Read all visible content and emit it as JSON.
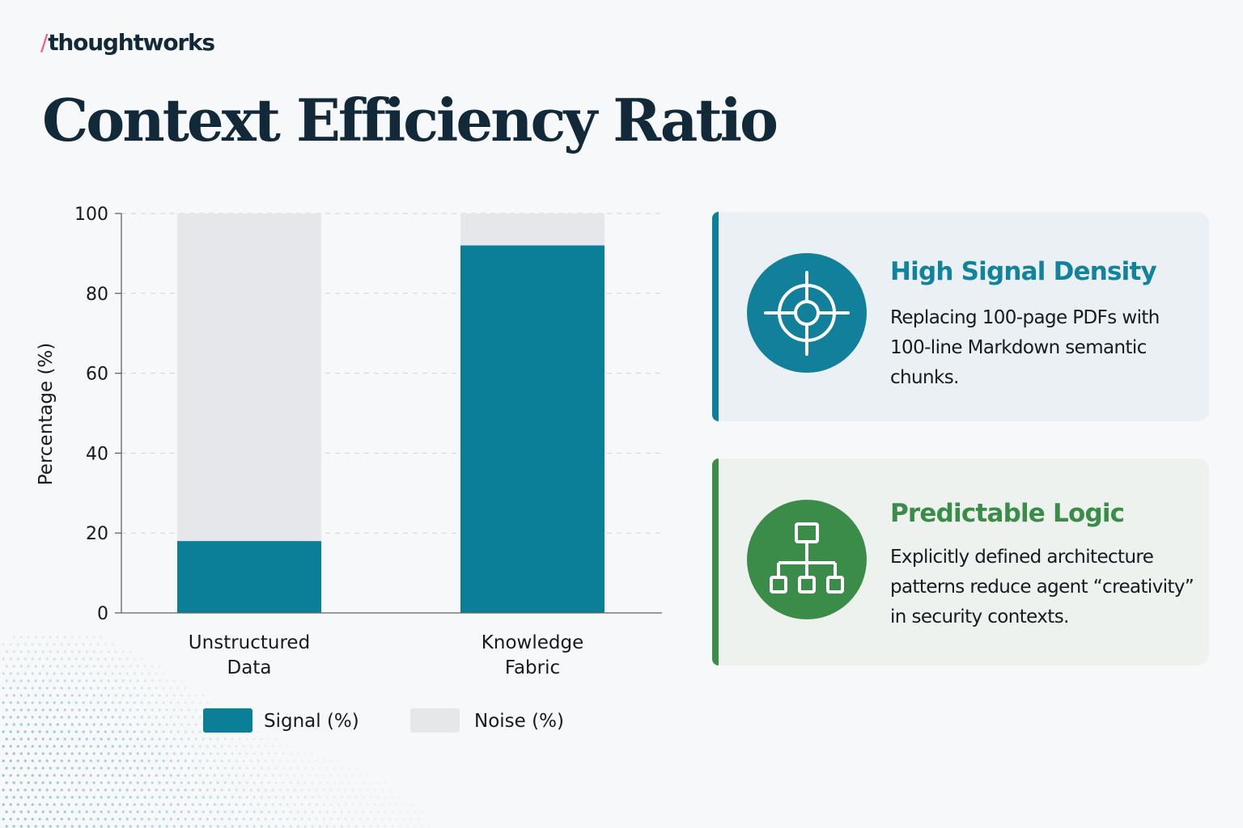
{
  "brand": {
    "slash": "/",
    "name": "thoughtworks"
  },
  "page_title": "Context Efficiency Ratio",
  "colors": {
    "signal": "#0c7f98",
    "noise": "#e6e7ea",
    "teal_accent": "#12839c",
    "green_accent": "#3b8c48",
    "title": "#12293a",
    "logo_slash": "#f06272"
  },
  "chart_data": {
    "type": "bar",
    "stacked": true,
    "categories": [
      "Unstructured\nData",
      "Knowledge\nFabric"
    ],
    "series": [
      {
        "name": "Signal (%)",
        "values": [
          18,
          92
        ]
      },
      {
        "name": "Noise (%)",
        "values": [
          82,
          8
        ]
      }
    ],
    "ylabel": "Percentage (%)",
    "ylim": [
      0,
      100
    ],
    "yticks": [
      0,
      20,
      40,
      60,
      80,
      100
    ],
    "grid": true,
    "legend": "bottom"
  },
  "cards": [
    {
      "icon": "target-crosshair-icon",
      "title": "High Signal Density",
      "lines": [
        "Replacing 100-page PDFs with",
        "100-line Markdown semantic",
        "chunks."
      ]
    },
    {
      "icon": "hierarchy-diagram-icon",
      "title": "Predictable Logic",
      "lines": [
        "Explicitly defined architecture",
        "patterns reduce agent “creativity”",
        "in security contexts."
      ]
    }
  ]
}
